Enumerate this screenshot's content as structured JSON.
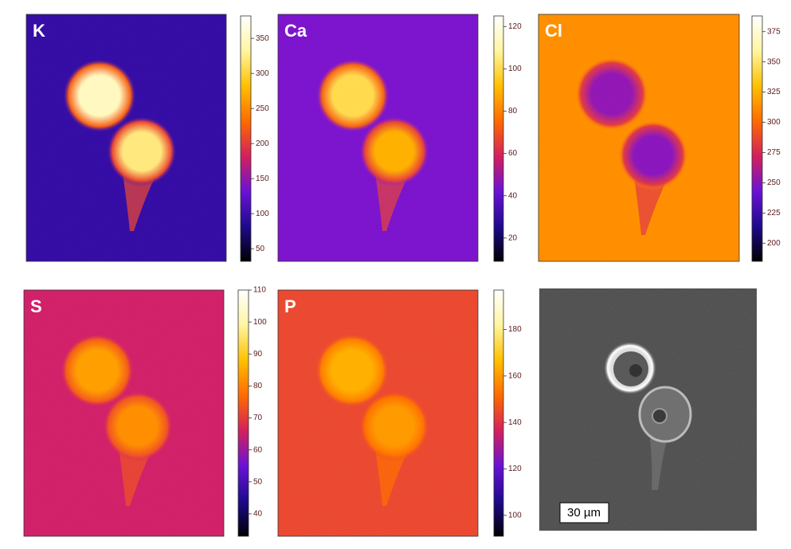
{
  "chart_data": [
    {
      "type": "heatmap",
      "title": "K",
      "clim": [
        32,
        382
      ],
      "cticks": [
        50,
        100,
        150,
        200,
        250,
        300,
        350
      ],
      "colormap": [
        "#000000",
        "#1e0a8c",
        "#6a12d6",
        "#d4205c",
        "#ff6a00",
        "#ffc000",
        "#fff5a0",
        "#ffffff"
      ]
    },
    {
      "type": "heatmap",
      "title": "Ca",
      "clim": [
        9,
        125
      ],
      "cticks": [
        20,
        40,
        60,
        80,
        100,
        120
      ],
      "colormap": [
        "#000000",
        "#1e0a8c",
        "#6a12d6",
        "#d4205c",
        "#ff6a00",
        "#ffc000",
        "#fff5a0",
        "#ffffff"
      ]
    },
    {
      "type": "heatmap",
      "title": "Cl",
      "clim": [
        185,
        388
      ],
      "cticks": [
        200,
        225,
        250,
        275,
        300,
        325,
        350,
        375
      ],
      "colormap": [
        "#000000",
        "#1e0a8c",
        "#6a12d6",
        "#d4205c",
        "#ff6a00",
        "#ffc000",
        "#fff5a0",
        "#ffffff"
      ]
    },
    {
      "type": "heatmap",
      "title": "S",
      "clim": [
        33,
        110
      ],
      "cticks": [
        40,
        50,
        60,
        70,
        80,
        90,
        100,
        110
      ],
      "colormap": [
        "#000000",
        "#1e0a8c",
        "#6a12d6",
        "#d4205c",
        "#ff6a00",
        "#ffc000",
        "#fff5a0",
        "#ffffff"
      ]
    },
    {
      "type": "heatmap",
      "title": "P",
      "clim": [
        91,
        197
      ],
      "cticks": [
        100,
        120,
        140,
        160,
        180
      ],
      "colormap": [
        "#000000",
        "#1e0a8c",
        "#6a12d6",
        "#d4205c",
        "#ff6a00",
        "#ffc000",
        "#fff5a0",
        "#ffffff"
      ]
    }
  ],
  "scale_bar": "30 µm"
}
